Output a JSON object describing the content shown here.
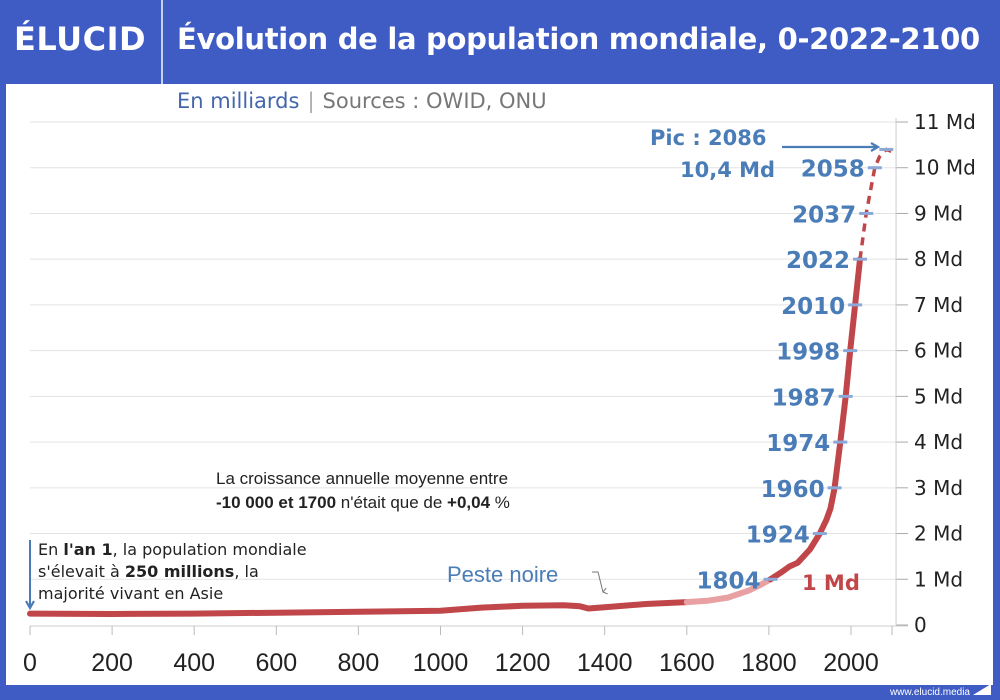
{
  "header": {
    "logo": "ÉLUCID",
    "title": "Évolution de la population mondiale, 0-2022-2100"
  },
  "subtitle": {
    "unit": "En milliards",
    "separator": "|",
    "sources": "Sources : OWID, ONU"
  },
  "footer": {
    "url": "www.elucid.media"
  },
  "colors": {
    "brand_blue": "#3f5bc4",
    "line_red": "#c0464a",
    "line_light": "#e8a0a2",
    "annotation_blue": "#4a7cb8",
    "text_dark": "#222222"
  },
  "chart_data": {
    "type": "line",
    "title": "Évolution de la population mondiale, 0-2022-2100",
    "xlabel": "",
    "ylabel": "En milliards",
    "xlim": [
      0,
      2100
    ],
    "ylim": [
      0,
      11
    ],
    "grid": true,
    "x_ticks": [
      0,
      200,
      400,
      600,
      800,
      1000,
      1200,
      1400,
      1600,
      1800,
      2000
    ],
    "x_tick_labels": [
      "0",
      "200",
      "400",
      "600",
      "800",
      "1000",
      "1200",
      "1400",
      "1600",
      "1800",
      "2000"
    ],
    "y_ticks": [
      0,
      1,
      2,
      3,
      4,
      5,
      6,
      7,
      8,
      9,
      10,
      11
    ],
    "y_tick_labels": [
      "0",
      "1 Md",
      "2 Md",
      "3 Md",
      "4 Md",
      "5 Md",
      "6 Md",
      "7 Md",
      "8 Md",
      "9 Md",
      "10 Md",
      "11 Md"
    ],
    "series": [
      {
        "name": "historique",
        "style": "solid",
        "x": [
          0,
          200,
          400,
          600,
          800,
          1000,
          1100,
          1200,
          1300,
          1340,
          1360,
          1400,
          1500,
          1600
        ],
        "values": [
          0.25,
          0.24,
          0.25,
          0.27,
          0.29,
          0.31,
          0.38,
          0.42,
          0.43,
          0.41,
          0.36,
          0.39,
          0.46,
          0.5
        ]
      },
      {
        "name": "historique-transition",
        "style": "light",
        "x": [
          1600,
          1650,
          1700,
          1750,
          1780,
          1804
        ],
        "values": [
          0.5,
          0.53,
          0.6,
          0.75,
          0.88,
          1.0
        ]
      },
      {
        "name": "historique-moderne",
        "style": "solid",
        "x": [
          1804,
          1830,
          1850,
          1870,
          1900,
          1924,
          1940,
          1950,
          1960,
          1974,
          1987,
          1998,
          2010,
          2022
        ],
        "values": [
          1.0,
          1.15,
          1.28,
          1.36,
          1.65,
          2.0,
          2.3,
          2.55,
          3.0,
          4.0,
          5.0,
          6.0,
          7.0,
          8.0
        ]
      },
      {
        "name": "projection",
        "style": "dashed",
        "x": [
          2022,
          2037,
          2058,
          2070,
          2086,
          2100
        ],
        "values": [
          8.0,
          9.0,
          10.0,
          10.25,
          10.4,
          10.35
        ]
      }
    ],
    "milestones": [
      {
        "year": "1804",
        "value": 1
      },
      {
        "year": "1924",
        "value": 2
      },
      {
        "year": "1960",
        "value": 3
      },
      {
        "year": "1974",
        "value": 4
      },
      {
        "year": "1987",
        "value": 5
      },
      {
        "year": "1998",
        "value": 6
      },
      {
        "year": "2010",
        "value": 7
      },
      {
        "year": "2022",
        "value": 8
      },
      {
        "year": "2037",
        "value": 9
      },
      {
        "year": "2058",
        "value": 10
      }
    ],
    "milestone_x": [
      1804,
      1924,
      1960,
      1974,
      1987,
      1998,
      2010,
      2022,
      2037,
      2058
    ],
    "annotations": {
      "peak_label": "Pic : 2086",
      "peak_value": "10,4 Md",
      "peak_x": 2086,
      "peak_y": 10.4,
      "one_md_label": "1 Md",
      "peste_label": "Peste noire",
      "growth_line1": "La croissance annuelle moyenne entre",
      "growth_line2_bold1": "-10 000 et 1700",
      "growth_line2_mid": " n'était que de ",
      "growth_line2_bold2": "+0,04",
      "growth_line2_end": " %",
      "year1_l1_a": "En ",
      "year1_l1_b": "l'an 1",
      "year1_l1_c": ", la population mondiale",
      "year1_l2_a": "s'élevait à ",
      "year1_l2_b": "250 millions",
      "year1_l2_c": ", la",
      "year1_l3": "majorité vivant en Asie"
    }
  }
}
